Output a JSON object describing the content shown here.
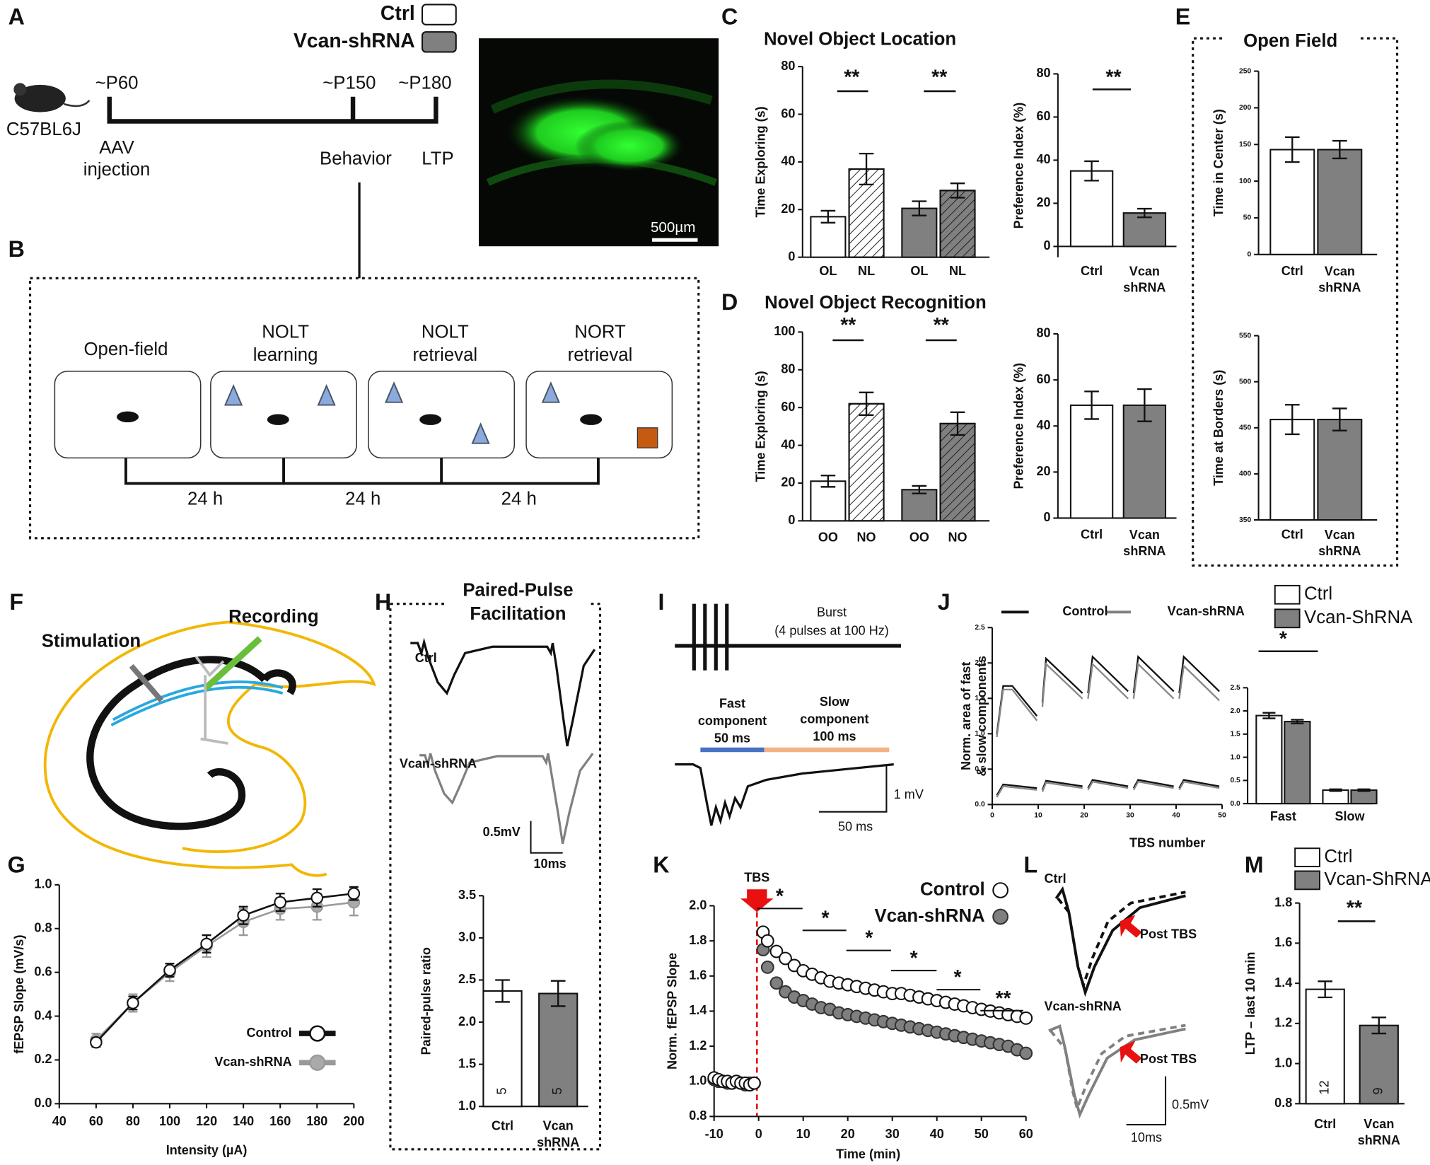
{
  "panels": {
    "letters": [
      "A",
      "B",
      "C",
      "D",
      "E",
      "F",
      "G",
      "H",
      "I",
      "J",
      "K",
      "L",
      "M"
    ],
    "A": {
      "legend": [
        "Ctrl",
        "Vcan-shRNA"
      ],
      "timepoints": [
        "~P60",
        "~P150",
        "~P180"
      ],
      "strain": "C57BL6J",
      "events": [
        "AAV injection",
        "Behavior",
        "LTP"
      ],
      "scale_bar": "500µm"
    },
    "B": {
      "stages": [
        "Open-field",
        "NOLT learning",
        "NOLT retrieval",
        "NORT retrieval"
      ],
      "intervals": [
        "24 h",
        "24 h",
        "24 h"
      ]
    },
    "E": {
      "title": "Open Field"
    },
    "F": {
      "labels": [
        "Stimulation",
        "Recording"
      ]
    },
    "H": {
      "title": "Paired-Pulse Facilitation",
      "traces": [
        "Ctrl",
        "Vcan-shRNA"
      ],
      "scale": [
        "0.5mV",
        "10ms"
      ]
    },
    "I": {
      "burst": "Burst (4 pulses at 100 Hz)",
      "fast": "Fast component 50 ms",
      "slow": "Slow component 100 ms",
      "scale": [
        "1 mV",
        "50 ms"
      ]
    },
    "L": {
      "traces": [
        "Ctrl",
        "Vcan-shRNA"
      ],
      "arrows": [
        "Post TBS",
        "Post TBS"
      ],
      "scale": [
        "0.5mV",
        "10ms"
      ]
    }
  },
  "chart_data": [
    {
      "type": "bar",
      "title": "Novel Object Location",
      "ylabel": "Time Exploring (s)",
      "categories": [
        "OL",
        "NL",
        "OL",
        "NL"
      ],
      "values": [
        17,
        37,
        20.5,
        28
      ],
      "errors": [
        2.5,
        6.5,
        3,
        3
      ],
      "colors": [
        "#ffffff",
        "#ffffff",
        "#808080",
        "#808080"
      ],
      "hatched": [
        false,
        true,
        false,
        true
      ],
      "ylim": [
        0,
        80
      ],
      "yticks": [
        0,
        20,
        40,
        60,
        80
      ],
      "annotations": [
        "**",
        "**"
      ]
    },
    {
      "type": "bar",
      "ylabel": "Preference Index (%)",
      "categories": [
        "Ctrl",
        "Vcan shRNA"
      ],
      "values": [
        35,
        15.5
      ],
      "errors": [
        4.5,
        2
      ],
      "colors": [
        "#ffffff",
        "#808080"
      ],
      "ylim": [
        -5,
        80
      ],
      "yticks": [
        0,
        20,
        40,
        60,
        80
      ],
      "annotations": [
        "**"
      ]
    },
    {
      "type": "bar",
      "title": "Novel Object Recognition",
      "ylabel": "Time Exploring (s)",
      "categories": [
        "OO",
        "NO",
        "OO",
        "NO"
      ],
      "values": [
        21,
        62,
        16.5,
        51.5
      ],
      "errors": [
        3,
        6,
        2,
        6
      ],
      "colors": [
        "#ffffff",
        "#ffffff",
        "#808080",
        "#808080"
      ],
      "hatched": [
        false,
        true,
        false,
        true
      ],
      "ylim": [
        0,
        100
      ],
      "yticks": [
        0,
        20,
        40,
        60,
        80,
        100
      ],
      "annotations": [
        "**",
        "**"
      ]
    },
    {
      "type": "bar",
      "ylabel": "Preference Index (%)",
      "categories": [
        "Ctrl",
        "Vcan shRNA"
      ],
      "values": [
        49,
        49
      ],
      "errors": [
        6,
        7
      ],
      "colors": [
        "#ffffff",
        "#808080"
      ],
      "ylim": [
        0,
        80
      ],
      "yticks": [
        0,
        20,
        40,
        60,
        80
      ]
    },
    {
      "type": "bar",
      "ylabel": "Time in Center (s)",
      "categories": [
        "Ctrl",
        "Vcan shRNA"
      ],
      "values": [
        143,
        143
      ],
      "errors": [
        17,
        12
      ],
      "colors": [
        "#ffffff",
        "#808080"
      ],
      "ylim": [
        0,
        250
      ],
      "yticks": [
        0,
        50,
        100,
        150,
        200,
        250
      ]
    },
    {
      "type": "bar",
      "ylabel": "Time at Borders (s)",
      "categories": [
        "Ctrl",
        "Vcan shRNA"
      ],
      "values": [
        459,
        459
      ],
      "errors": [
        16,
        12
      ],
      "colors": [
        "#ffffff",
        "#808080"
      ],
      "ylim": [
        350,
        550
      ],
      "yticks": [
        350,
        400,
        450,
        500,
        550
      ]
    },
    {
      "type": "line",
      "xlabel": "Intensity (µA)",
      "ylabel": "fEPSP Slope (mV/s)",
      "x": [
        60,
        80,
        100,
        120,
        140,
        160,
        180,
        200
      ],
      "series": [
        {
          "name": "Control",
          "color": "#111111",
          "marker_fill": "#ffffff",
          "values": [
            0.28,
            0.46,
            0.61,
            0.73,
            0.86,
            0.92,
            0.94,
            0.96
          ],
          "errors": [
            0.02,
            0.03,
            0.03,
            0.04,
            0.04,
            0.04,
            0.04,
            0.03
          ]
        },
        {
          "name": "Vcan-shRNA",
          "color": "#999999",
          "marker_fill": "#aaaaaa",
          "values": [
            0.29,
            0.46,
            0.6,
            0.72,
            0.83,
            0.89,
            0.9,
            0.92
          ],
          "errors": [
            0.03,
            0.04,
            0.04,
            0.05,
            0.06,
            0.05,
            0.06,
            0.06
          ]
        }
      ],
      "xlim": [
        40,
        200
      ],
      "xticks": [
        40,
        60,
        80,
        100,
        120,
        140,
        160,
        180,
        200
      ],
      "ylim": [
        0,
        1
      ],
      "yticks": [
        {
          "value": 0,
          "label": "0.0"
        },
        0.2,
        0.4,
        0.6,
        0.8,
        {
          "value": 1,
          "label": "1.0"
        }
      ]
    },
    {
      "type": "bar",
      "ylabel": "Paired-pulse ratio",
      "categories": [
        "Ctrl",
        "Vcan shRNA"
      ],
      "values": [
        2.37,
        2.34
      ],
      "errors": [
        0.13,
        0.15
      ],
      "colors": [
        "#ffffff",
        "#808080"
      ],
      "n_labels": [
        "5",
        "5"
      ],
      "ylim": [
        1,
        3.5
      ],
      "yticks": [
        {
          "value": 1,
          "label": "1.0"
        },
        1.5,
        {
          "value": 2,
          "label": "2.0"
        },
        2.5,
        {
          "value": 3,
          "label": "3.0"
        },
        3.5
      ]
    },
    {
      "type": "bar",
      "categories": [
        "Fast",
        "Slow"
      ],
      "series": [
        {
          "name": "Ctrl",
          "color": "#ffffff",
          "values": [
            1.9,
            0.29
          ],
          "errors": [
            0.06,
            0.02
          ]
        },
        {
          "name": "Vcan-ShRNA",
          "color": "#808080",
          "values": [
            1.77,
            0.29
          ],
          "errors": [
            0.04,
            0.02
          ]
        }
      ],
      "ylim": [
        0,
        2.5
      ],
      "yticks": [
        {
          "value": 0,
          "label": "0.0"
        },
        0.5,
        {
          "value": 1,
          "label": "1.0"
        },
        1.5,
        {
          "value": 2,
          "label": "2.0"
        },
        2.5
      ],
      "annotations": [
        "*"
      ]
    },
    {
      "type": "axes",
      "xlabel": "TBS number",
      "ylabel": "Norm. area of fast & slow components",
      "legend": [
        "Control",
        "Vcan-shRNA"
      ],
      "xlim": [
        0,
        50
      ],
      "xticks": [
        0,
        10,
        20,
        30,
        40,
        50
      ],
      "ylim": [
        0,
        2.5
      ],
      "yticks": [
        {
          "value": 0,
          "label": "0.0"
        },
        0.5,
        {
          "value": 1,
          "label": "1.0"
        },
        1.5,
        {
          "value": 2,
          "label": "2.0"
        },
        2.5
      ]
    },
    {
      "type": "scatter",
      "xlabel": "Time (min)",
      "ylabel": "Norm. fEPSP Slope",
      "annotations": [
        "TBS",
        "*",
        "*",
        "*",
        "*",
        "*",
        "**"
      ],
      "x": [
        -10,
        -9,
        -8,
        -7,
        -6,
        -5,
        -4,
        -3,
        -2,
        -1,
        1,
        2,
        4,
        6,
        8,
        10,
        12,
        14,
        16,
        18,
        20,
        22,
        24,
        26,
        28,
        30,
        32,
        34,
        36,
        38,
        40,
        42,
        44,
        46,
        48,
        50,
        52,
        54,
        56,
        58,
        60
      ],
      "series": [
        {
          "name": "Control",
          "color": "#111111",
          "marker_fill": "#ffffff",
          "values": [
            1.02,
            1.01,
            1.0,
            1.0,
            0.99,
            1.0,
            0.99,
            0.99,
            0.98,
            0.99,
            1.85,
            1.8,
            1.74,
            1.7,
            1.66,
            1.63,
            1.61,
            1.59,
            1.57,
            1.56,
            1.55,
            1.54,
            1.53,
            1.52,
            1.51,
            1.5,
            1.5,
            1.49,
            1.48,
            1.47,
            1.46,
            1.45,
            1.44,
            1.43,
            1.42,
            1.41,
            1.4,
            1.39,
            1.38,
            1.37,
            1.36
          ]
        },
        {
          "name": "Vcan-shRNA",
          "color": "#333333",
          "marker_fill": "#7f7f7f",
          "values": [
            1.01,
            1.0,
            1.0,
            0.99,
            0.99,
            1.0,
            0.99,
            0.98,
            0.99,
            0.99,
            1.75,
            1.65,
            1.56,
            1.51,
            1.48,
            1.46,
            1.44,
            1.42,
            1.41,
            1.39,
            1.38,
            1.37,
            1.36,
            1.35,
            1.34,
            1.33,
            1.32,
            1.31,
            1.3,
            1.29,
            1.28,
            1.27,
            1.26,
            1.25,
            1.24,
            1.23,
            1.22,
            1.21,
            1.2,
            1.18,
            1.16
          ]
        }
      ],
      "xlim": [
        -10,
        60
      ],
      "xticks": [
        -10,
        0,
        10,
        20,
        30,
        40,
        50,
        60
      ],
      "ylim": [
        0.8,
        2
      ],
      "yticks": [
        0.8,
        {
          "value": 1,
          "label": "1.0"
        },
        1.2,
        1.4,
        1.6,
        1.8,
        {
          "value": 2,
          "label": "2.0"
        }
      ]
    },
    {
      "type": "bar",
      "ylabel": "LTP – last 10 min",
      "legend": [
        "Ctrl",
        "Vcan-ShRNA"
      ],
      "categories": [
        "Ctrl",
        "Vcan shRNA"
      ],
      "values": [
        1.37,
        1.19
      ],
      "errors": [
        0.04,
        0.04
      ],
      "colors": [
        "#ffffff",
        "#808080"
      ],
      "n_labels": [
        "12",
        "9"
      ],
      "ylim": [
        0.8,
        1.8
      ],
      "yticks": [
        0.8,
        {
          "value": 1,
          "label": "1.0"
        },
        1.2,
        1.4,
        1.6,
        1.8
      ],
      "annotations": [
        "**"
      ]
    }
  ]
}
